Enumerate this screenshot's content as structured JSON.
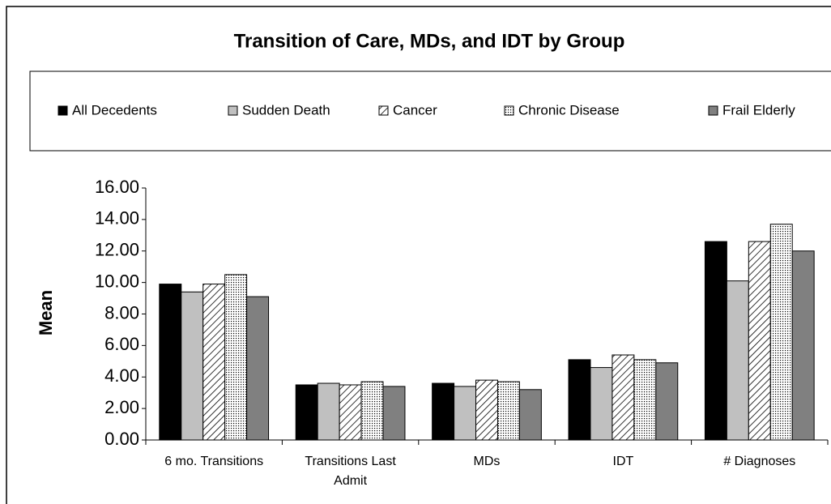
{
  "chart_data": {
    "type": "bar",
    "title": "Transition of Care, MDs, and IDT by Group",
    "y_label": "Mean",
    "categories": [
      "6 mo. Transitions",
      "Transitions Last Admit",
      "MDs",
      "IDT",
      "# Diagnoses"
    ],
    "series": [
      {
        "name": "All Decedents",
        "color": "#000000",
        "pattern": "solid",
        "values": [
          9.9,
          3.5,
          3.6,
          5.1,
          12.6
        ]
      },
      {
        "name": "Sudden Death",
        "color": "#c0c0c0",
        "pattern": "solid",
        "values": [
          9.4,
          3.6,
          3.4,
          4.6,
          10.1
        ]
      },
      {
        "name": "Cancer",
        "color": "#000000",
        "pattern": "hatch",
        "values": [
          9.9,
          3.5,
          3.8,
          5.4,
          12.6
        ]
      },
      {
        "name": "Chronic Disease",
        "color": "#000000",
        "pattern": "dots",
        "values": [
          10.5,
          3.7,
          3.7,
          5.1,
          13.7
        ]
      },
      {
        "name": "Frail Elderly",
        "color": "#808080",
        "pattern": "solid",
        "values": [
          9.1,
          3.4,
          3.2,
          4.9,
          12.0
        ]
      }
    ],
    "ylim": [
      0,
      16
    ],
    "yticks": [
      {
        "value": 0,
        "label": "0.00"
      },
      {
        "value": 2,
        "label": "2.00"
      },
      {
        "value": 4,
        "label": "4.00"
      },
      {
        "value": 6,
        "label": "6.00"
      },
      {
        "value": 8,
        "label": "8.00"
      },
      {
        "value": 10,
        "label": "10.00"
      },
      {
        "value": 12,
        "label": "12.00"
      },
      {
        "value": 14,
        "label": "14.00"
      },
      {
        "value": 16,
        "label": "16.00"
      }
    ],
    "grid": false,
    "legend": "top"
  }
}
